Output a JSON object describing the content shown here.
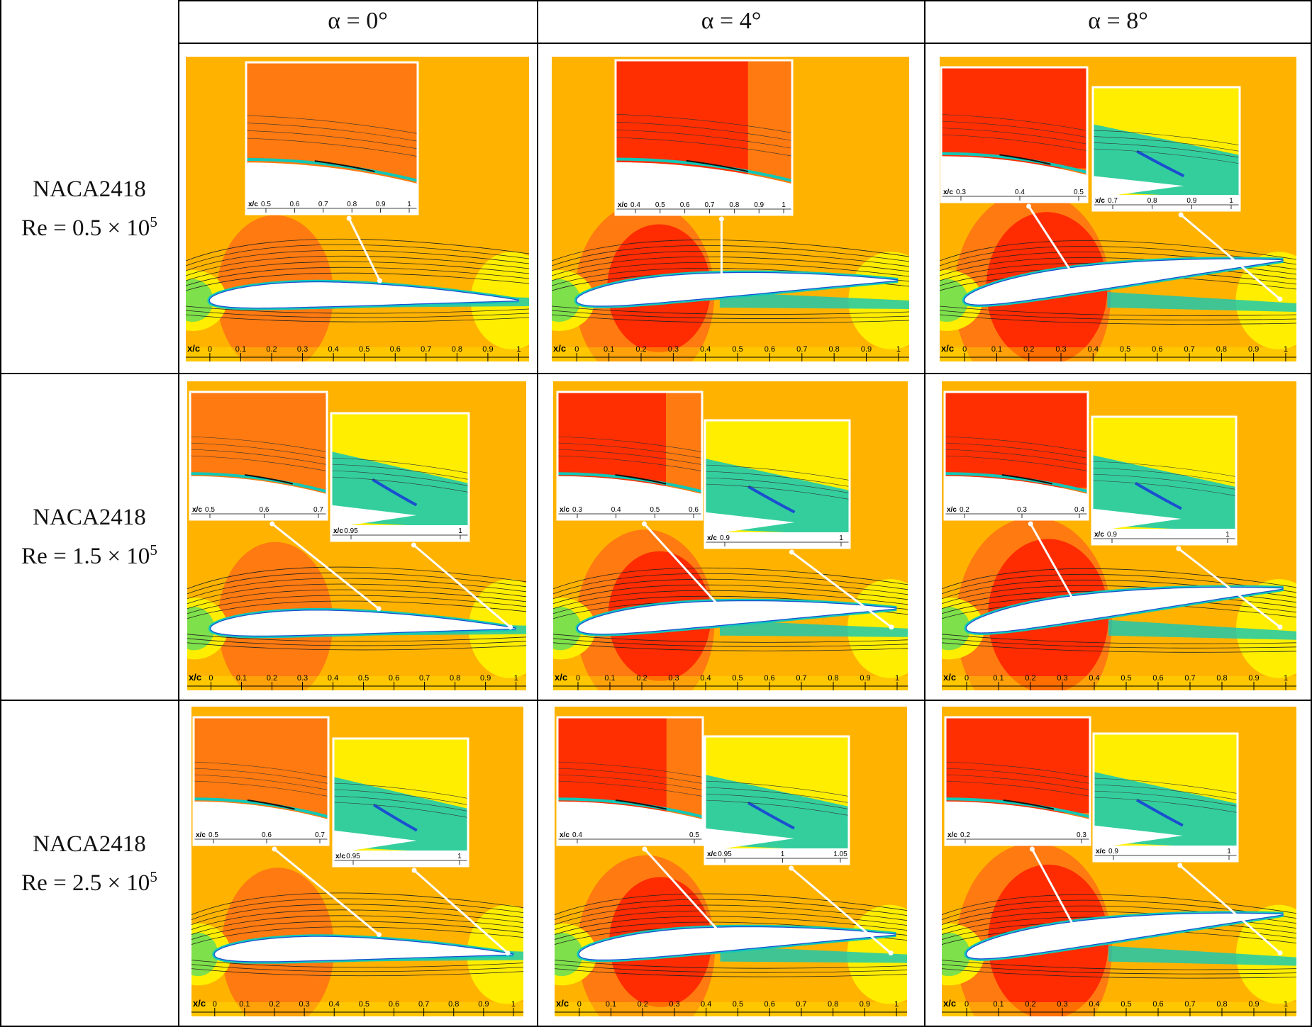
{
  "columns": [
    "α = 0°",
    "α = 4°",
    "α = 8°"
  ],
  "rows": [
    {
      "airfoil": "NACA2418",
      "re_prefix": "Re = 0.5 × 10",
      "re_exp": "5"
    },
    {
      "airfoil": "NACA2418",
      "re_prefix": "Re = 1.5 × 10",
      "re_exp": "5"
    },
    {
      "airfoil": "NACA2418",
      "re_prefix": "Re = 2.5 × 10",
      "re_exp": "5"
    }
  ],
  "axis": {
    "name": "x/c",
    "ticks": [
      "0",
      "0.1",
      "0.2",
      "0.3",
      "0.4",
      "0.5",
      "0.6",
      "0.7",
      "0.8",
      "0.9",
      "1"
    ]
  },
  "panels": [
    [
      {
        "insets": [
          {
            "ticks": [
              "0.5",
              "0.6",
              "0.7",
              "0.8",
              "0.9",
              "1"
            ]
          }
        ]
      },
      {
        "insets": [
          {
            "ticks": [
              "0.4",
              "0.5",
              "0.6",
              "0.7",
              "0.8",
              "0.9",
              "1"
            ]
          }
        ]
      },
      {
        "insets": [
          {
            "ticks": [
              "0.3",
              "0.4",
              "0.5"
            ]
          },
          {
            "ticks": [
              "0.7",
              "0.8",
              "0.9",
              "1"
            ]
          }
        ]
      }
    ],
    [
      {
        "insets": [
          {
            "ticks": [
              "0.5",
              "0.6",
              "0.7"
            ]
          },
          {
            "ticks": [
              "0.95",
              "1"
            ]
          }
        ]
      },
      {
        "insets": [
          {
            "ticks": [
              "0.3",
              "0.4",
              "0.5",
              "0.6"
            ]
          },
          {
            "ticks": [
              "0.9",
              "1"
            ]
          }
        ]
      },
      {
        "insets": [
          {
            "ticks": [
              "0.2",
              "0.3",
              "0.4"
            ]
          },
          {
            "ticks": [
              "0.9",
              "1"
            ]
          }
        ]
      }
    ],
    [
      {
        "insets": [
          {
            "ticks": [
              "0.5",
              "0.6",
              "0.7"
            ]
          },
          {
            "ticks": [
              "0.95",
              "1"
            ]
          }
        ]
      },
      {
        "insets": [
          {
            "ticks": [
              "0.4",
              "0.5"
            ]
          },
          {
            "ticks": [
              "0.95",
              "1",
              "1.05"
            ]
          }
        ]
      },
      {
        "insets": [
          {
            "ticks": [
              "0.2",
              "0.3"
            ]
          },
          {
            "ticks": [
              "0.9",
              "1"
            ]
          }
        ]
      }
    ]
  ],
  "colors": {
    "far_field": "#ffb300",
    "high_pressure": "#ff7a10",
    "suction_peak": "#ff2200",
    "stagnation": "#7ee04a",
    "boundary_layer": "#10c8b8",
    "separation": "#1a4fd0",
    "near_field": "#ffee00"
  }
}
